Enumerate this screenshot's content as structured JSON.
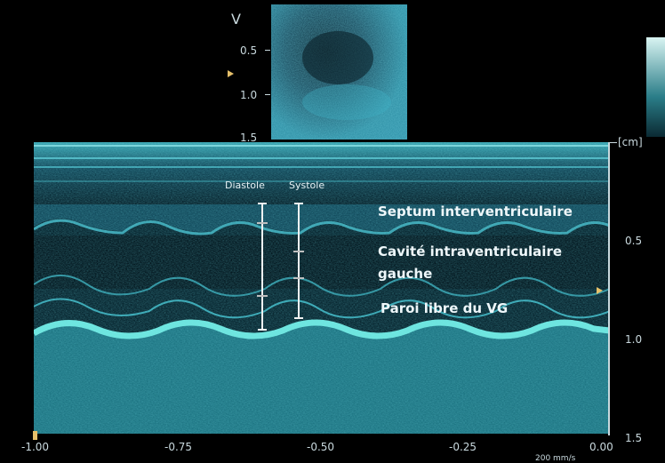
{
  "preview": {
    "label_v": "V",
    "depth_ticks": [
      "0.5",
      "1.0",
      "1.5"
    ]
  },
  "mmode": {
    "unit_label": "[cm]",
    "depth_ticks_right": [
      "0.5",
      "1.0",
      "1.5"
    ],
    "time_ticks": [
      "-1.00",
      "-0.75",
      "-0.50",
      "-0.25",
      "0.00"
    ],
    "sweep_speed": "200 mm/s",
    "phase_labels": {
      "diastole": "Diastole",
      "systole": "Systole"
    },
    "annotations": {
      "septum": "Septum interventriculaire",
      "cavity_line1": "Cavité intraventriculaire",
      "cavity_line2": "gauche",
      "wall": "Paroi libre du VG"
    }
  },
  "colors": {
    "tissue_bright": "#5fe0d8",
    "tissue_mid": "#1f6f7a",
    "background_dark": "#04141c",
    "marker": "#e5c06a"
  }
}
